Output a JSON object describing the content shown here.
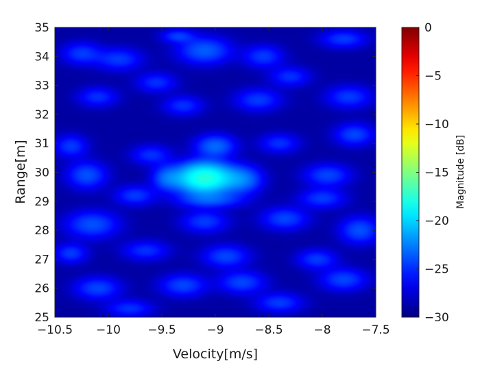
{
  "chart_data": {
    "type": "heatmap",
    "title": "",
    "xlabel": "Velocity[m/s]",
    "ylabel": "Range[m]",
    "xlim": [
      -10.5,
      -7.5
    ],
    "ylim": [
      25,
      35
    ],
    "xticks": [
      -10.5,
      -10,
      -9.5,
      -9,
      -8.5,
      -8,
      -7.5
    ],
    "xtick_labels": [
      "−10.5",
      "−10",
      "−9.5",
      "−9",
      "−8.5",
      "−8",
      "−7.5"
    ],
    "yticks": [
      25,
      26,
      27,
      28,
      29,
      30,
      31,
      32,
      33,
      34,
      35
    ],
    "ytick_labels": [
      "25",
      "26",
      "27",
      "28",
      "29",
      "30",
      "31",
      "32",
      "33",
      "34",
      "35"
    ],
    "colorbar": {
      "label": "Magnitude [dB]",
      "range": [
        -30,
        0
      ],
      "colormap": "jet",
      "ticks": [
        0,
        -5,
        -10,
        -15,
        -20,
        -25,
        -30
      ],
      "tick_labels": [
        "0",
        "−5",
        "−10",
        "−15",
        "−20",
        "−25",
        "−30"
      ]
    },
    "peak": {
      "velocity": -9.1,
      "range": 29.8,
      "magnitude_db": -18
    },
    "noise_floor_db": -29,
    "blobs": [
      {
        "velocity": -9.1,
        "range": 29.8,
        "magnitude_db": -18,
        "sigma_v": 0.16,
        "sigma_r": 0.32
      },
      {
        "velocity": -8.75,
        "range": 29.75,
        "magnitude_db": -24,
        "sigma_v": 0.12,
        "sigma_r": 0.3
      },
      {
        "velocity": -9.45,
        "range": 29.8,
        "magnitude_db": -25,
        "sigma_v": 0.09,
        "sigma_r": 0.28
      },
      {
        "velocity": -9.0,
        "range": 30.9,
        "magnitude_db": -24.5,
        "sigma_v": 0.12,
        "sigma_r": 0.25
      },
      {
        "velocity": -9.05,
        "range": 29.05,
        "magnitude_db": -25.5,
        "sigma_v": 0.2,
        "sigma_r": 0.18
      },
      {
        "velocity": -9.1,
        "range": 34.2,
        "magnitude_db": -25,
        "sigma_v": 0.16,
        "sigma_r": 0.3
      },
      {
        "velocity": -9.35,
        "range": 34.7,
        "magnitude_db": -26.5,
        "sigma_v": 0.1,
        "sigma_r": 0.15
      },
      {
        "velocity": -8.55,
        "range": 34.0,
        "magnitude_db": -26.5,
        "sigma_v": 0.12,
        "sigma_r": 0.25
      },
      {
        "velocity": -9.9,
        "range": 33.9,
        "magnitude_db": -26.5,
        "sigma_v": 0.14,
        "sigma_r": 0.25
      },
      {
        "velocity": -10.25,
        "range": 34.1,
        "magnitude_db": -26.5,
        "sigma_v": 0.12,
        "sigma_r": 0.25
      },
      {
        "velocity": -7.8,
        "range": 34.6,
        "magnitude_db": -26.5,
        "sigma_v": 0.14,
        "sigma_r": 0.2
      },
      {
        "velocity": -8.3,
        "range": 33.3,
        "magnitude_db": -27,
        "sigma_v": 0.12,
        "sigma_r": 0.22
      },
      {
        "velocity": -9.55,
        "range": 33.1,
        "magnitude_db": -27,
        "sigma_v": 0.12,
        "sigma_r": 0.22
      },
      {
        "velocity": -7.75,
        "range": 32.6,
        "magnitude_db": -26.5,
        "sigma_v": 0.14,
        "sigma_r": 0.25
      },
      {
        "velocity": -8.6,
        "range": 32.5,
        "magnitude_db": -26.5,
        "sigma_v": 0.14,
        "sigma_r": 0.25
      },
      {
        "velocity": -9.3,
        "range": 32.3,
        "magnitude_db": -27,
        "sigma_v": 0.12,
        "sigma_r": 0.22
      },
      {
        "velocity": -10.1,
        "range": 32.6,
        "magnitude_db": -27,
        "sigma_v": 0.12,
        "sigma_r": 0.22
      },
      {
        "velocity": -10.35,
        "range": 30.9,
        "magnitude_db": -26.5,
        "sigma_v": 0.1,
        "sigma_r": 0.25
      },
      {
        "velocity": -9.6,
        "range": 30.6,
        "magnitude_db": -27,
        "sigma_v": 0.12,
        "sigma_r": 0.22
      },
      {
        "velocity": -8.4,
        "range": 31.0,
        "magnitude_db": -27,
        "sigma_v": 0.12,
        "sigma_r": 0.22
      },
      {
        "velocity": -7.7,
        "range": 31.3,
        "magnitude_db": -26,
        "sigma_v": 0.12,
        "sigma_r": 0.25
      },
      {
        "velocity": -10.2,
        "range": 29.9,
        "magnitude_db": -25.5,
        "sigma_v": 0.12,
        "sigma_r": 0.3
      },
      {
        "velocity": -7.95,
        "range": 29.9,
        "magnitude_db": -26,
        "sigma_v": 0.14,
        "sigma_r": 0.25
      },
      {
        "velocity": -8.0,
        "range": 29.1,
        "magnitude_db": -26.5,
        "sigma_v": 0.14,
        "sigma_r": 0.22
      },
      {
        "velocity": -9.75,
        "range": 29.2,
        "magnitude_db": -26.5,
        "sigma_v": 0.12,
        "sigma_r": 0.22
      },
      {
        "velocity": -10.15,
        "range": 28.2,
        "magnitude_db": -25.5,
        "sigma_v": 0.16,
        "sigma_r": 0.3
      },
      {
        "velocity": -9.1,
        "range": 28.3,
        "magnitude_db": -26.5,
        "sigma_v": 0.14,
        "sigma_r": 0.25
      },
      {
        "velocity": -8.35,
        "range": 28.4,
        "magnitude_db": -26,
        "sigma_v": 0.14,
        "sigma_r": 0.25
      },
      {
        "velocity": -7.65,
        "range": 28.0,
        "magnitude_db": -25.5,
        "sigma_v": 0.12,
        "sigma_r": 0.3
      },
      {
        "velocity": -9.65,
        "range": 27.3,
        "magnitude_db": -27,
        "sigma_v": 0.14,
        "sigma_r": 0.22
      },
      {
        "velocity": -8.9,
        "range": 27.1,
        "magnitude_db": -26,
        "sigma_v": 0.14,
        "sigma_r": 0.25
      },
      {
        "velocity": -8.05,
        "range": 27.0,
        "magnitude_db": -26.5,
        "sigma_v": 0.12,
        "sigma_r": 0.22
      },
      {
        "velocity": -10.35,
        "range": 27.2,
        "magnitude_db": -26.5,
        "sigma_v": 0.1,
        "sigma_r": 0.22
      },
      {
        "velocity": -10.1,
        "range": 26.0,
        "magnitude_db": -26,
        "sigma_v": 0.14,
        "sigma_r": 0.25
      },
      {
        "velocity": -9.3,
        "range": 26.1,
        "magnitude_db": -26,
        "sigma_v": 0.14,
        "sigma_r": 0.25
      },
      {
        "velocity": -8.75,
        "range": 26.2,
        "magnitude_db": -26,
        "sigma_v": 0.14,
        "sigma_r": 0.25
      },
      {
        "velocity": -7.8,
        "range": 26.3,
        "magnitude_db": -26,
        "sigma_v": 0.14,
        "sigma_r": 0.25
      },
      {
        "velocity": -9.8,
        "range": 25.3,
        "magnitude_db": -27,
        "sigma_v": 0.14,
        "sigma_r": 0.2
      },
      {
        "velocity": -8.4,
        "range": 25.5,
        "magnitude_db": -26.5,
        "sigma_v": 0.14,
        "sigma_r": 0.22
      }
    ]
  }
}
